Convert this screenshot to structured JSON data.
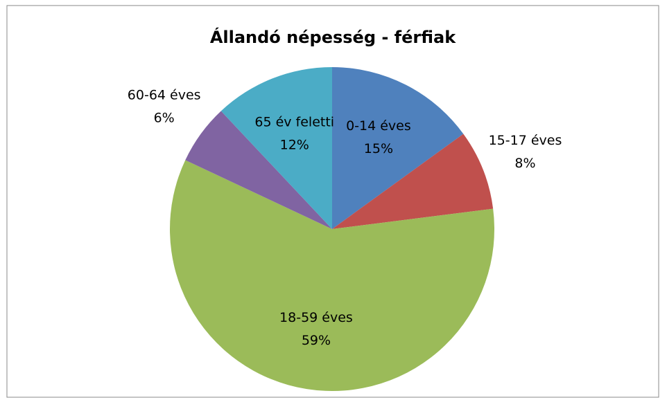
{
  "chart_data": {
    "type": "pie",
    "title": "Állandó népesség - férfiak",
    "categories": [
      "0-14 éves",
      "15-17 éves",
      "18-59 éves",
      "60-64 éves",
      "65 év feletti"
    ],
    "values": [
      15,
      8,
      59,
      6,
      12
    ],
    "value_labels": [
      "15%",
      "8%",
      "59%",
      "6%",
      "12%"
    ],
    "colors": [
      "#4f81bd",
      "#c0504d",
      "#9bbb59",
      "#8064a2",
      "#4bacc6"
    ]
  }
}
